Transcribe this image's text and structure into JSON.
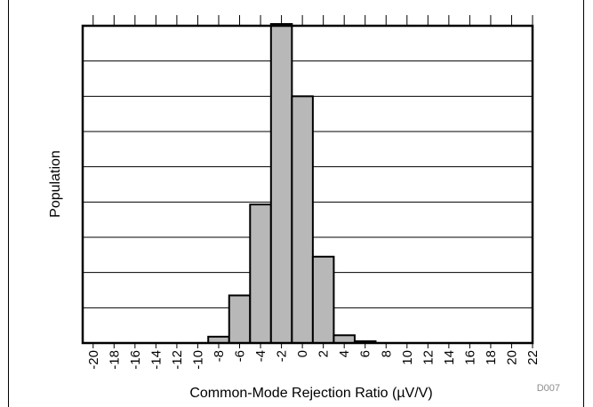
{
  "chart_data": {
    "type": "bar",
    "xlabel": "Common-Mode Rejection Ratio (µV/V)",
    "ylabel": "Population",
    "x_ticks": [
      -20,
      -18,
      -16,
      -14,
      -12,
      -10,
      -8,
      -6,
      -4,
      -2,
      0,
      2,
      4,
      6,
      8,
      10,
      12,
      14,
      16,
      18,
      20,
      22
    ],
    "xlim": [
      -21,
      22
    ],
    "ylim": [
      0,
      9
    ],
    "y_gridlines": 9,
    "grid": "horizontal",
    "bin_width": 2,
    "bins": [
      {
        "start": -9,
        "end": -7,
        "value": 0.18
      },
      {
        "start": -7,
        "end": -5,
        "value": 1.35
      },
      {
        "start": -5,
        "end": -3,
        "value": 3.93
      },
      {
        "start": -3,
        "end": -1,
        "value": 9.05
      },
      {
        "start": -1,
        "end": 1,
        "value": 7.0
      },
      {
        "start": 1,
        "end": 3,
        "value": 2.45
      },
      {
        "start": 3,
        "end": 5,
        "value": 0.22
      },
      {
        "start": 5,
        "end": 7,
        "value": 0.05
      }
    ],
    "bar_color": "#b8b8b8",
    "code": "D007"
  }
}
